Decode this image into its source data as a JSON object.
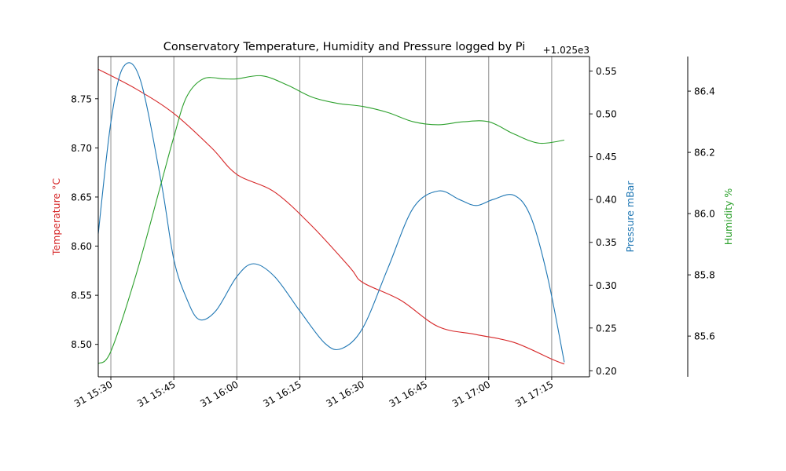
{
  "chart_data": {
    "type": "line",
    "title": "Conservatory Temperature, Humidity and Pressure logged by Pi",
    "xlabel": "",
    "x_unit": "minutes",
    "x_ticks": [
      "31 15:30",
      "31 15:45",
      "31 16:00",
      "31 16:15",
      "31 16:30",
      "31 16:45",
      "31 17:00",
      "31 17:15"
    ],
    "x_tick_values": [
      "15:30",
      "15:45",
      "16:00",
      "16:15",
      "16:30",
      "16:45",
      "17:00",
      "17:15"
    ],
    "xlim": [
      "15:27",
      "17:24"
    ],
    "vertical_grid": true,
    "axes": {
      "temperature": {
        "label": "Temperature °C",
        "color": "#d62728",
        "side": "left",
        "ylim": [
          8.467,
          8.793
        ],
        "ticks": [
          8.5,
          8.55,
          8.6,
          8.65,
          8.7,
          8.75
        ],
        "tick_labels": [
          "8.50",
          "8.55",
          "8.60",
          "8.65",
          "8.70",
          "8.75"
        ]
      },
      "pressure": {
        "label": "Pressure mBar",
        "color": "#1f77b4",
        "side": "right",
        "offset_text": "+1.025e3",
        "ylim": [
          0.193,
          0.567
        ],
        "ticks": [
          0.2,
          0.25,
          0.3,
          0.35,
          0.4,
          0.45,
          0.5,
          0.55
        ],
        "tick_labels": [
          "0.20",
          "0.25",
          "0.30",
          "0.35",
          "0.40",
          "0.45",
          "0.50",
          "0.55"
        ]
      },
      "humidity": {
        "label": "Humidity %",
        "color": "#2ca02c",
        "side": "right-outer",
        "ylim": [
          85.467,
          86.513
        ],
        "ticks": [
          85.6,
          85.8,
          86.0,
          86.2,
          86.4
        ],
        "tick_labels": [
          "85.6",
          "85.8",
          "86.0",
          "86.2",
          "86.4"
        ]
      }
    },
    "series": [
      {
        "name": "Temperature °C",
        "axis": "temperature",
        "x": [
          "15:27",
          "15:36",
          "15:45",
          "15:54",
          "16:00",
          "16:09",
          "16:18",
          "16:27",
          "16:30",
          "16:39",
          "16:48",
          "16:57",
          "17:06",
          "17:15",
          "17:18"
        ],
        "values": [
          8.78,
          8.76,
          8.735,
          8.7,
          8.673,
          8.655,
          8.62,
          8.578,
          8.563,
          8.545,
          8.518,
          8.51,
          8.502,
          8.485,
          8.48
        ]
      },
      {
        "name": "Pressure mBar",
        "axis": "pressure",
        "x": [
          "15:27",
          "15:30",
          "15:33",
          "15:37",
          "15:42",
          "15:45",
          "15:48",
          "15:51",
          "15:55",
          "16:00",
          "16:04",
          "16:09",
          "16:15",
          "16:21",
          "16:25",
          "16:30",
          "16:36",
          "16:42",
          "16:48",
          "16:53",
          "16:57",
          "17:01",
          "17:06",
          "17:10",
          "17:14",
          "17:18"
        ],
        "values": [
          0.36,
          0.49,
          0.555,
          0.54,
          0.42,
          0.33,
          0.285,
          0.26,
          0.27,
          0.31,
          0.325,
          0.31,
          0.27,
          0.232,
          0.226,
          0.25,
          0.32,
          0.39,
          0.41,
          0.4,
          0.393,
          0.4,
          0.405,
          0.38,
          0.31,
          0.21
        ]
      },
      {
        "name": "Humidity %",
        "axis": "humidity",
        "x": [
          "15:27",
          "15:30",
          "15:36",
          "15:42",
          "15:45",
          "15:48",
          "15:52",
          "15:57",
          "16:00",
          "16:06",
          "16:12",
          "16:18",
          "16:24",
          "16:30",
          "16:36",
          "16:42",
          "16:48",
          "16:54",
          "17:00",
          "17:06",
          "17:12",
          "17:18"
        ],
        "values": [
          85.51,
          85.55,
          85.8,
          86.1,
          86.25,
          86.38,
          86.44,
          86.44,
          86.44,
          86.45,
          86.42,
          86.38,
          86.36,
          86.35,
          86.33,
          86.3,
          86.29,
          86.3,
          86.3,
          86.26,
          86.23,
          86.24
        ]
      }
    ]
  }
}
